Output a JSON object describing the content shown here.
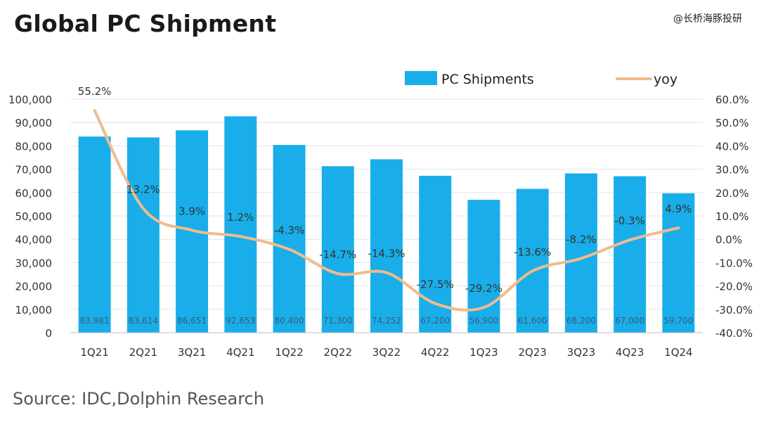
{
  "title": "Global PC Shipment",
  "watermark": "@长桥海豚投研",
  "source": "Source: IDC,Dolphin Research",
  "colors": {
    "bar": "#19aee9",
    "line": "#f2bb8c",
    "grid": "#e4e4e4"
  },
  "chart_data": {
    "type": "bar",
    "categories": [
      "1Q21",
      "2Q21",
      "3Q21",
      "4Q21",
      "1Q22",
      "2Q22",
      "3Q22",
      "4Q22",
      "1Q23",
      "2Q23",
      "3Q23",
      "4Q23",
      "1Q24"
    ],
    "series": [
      {
        "name": "PC Shipments",
        "type": "bar",
        "axis": "left",
        "values": [
          83981,
          83614,
          86651,
          92653,
          80400,
          71300,
          74252,
          67200,
          56900,
          61600,
          68200,
          67000,
          59700
        ],
        "labels": [
          "83,981",
          "83,614",
          "86,651",
          "92,653",
          "80,400",
          "71,300",
          "74,252",
          "67,200",
          "56,900",
          "61,600",
          "68,200",
          "67,000",
          "59,700"
        ]
      },
      {
        "name": "yoy",
        "type": "line",
        "axis": "right",
        "values": [
          55.2,
          13.2,
          3.9,
          1.2,
          -4.3,
          -14.7,
          -14.3,
          -27.5,
          -29.2,
          -13.6,
          -8.2,
          -0.3,
          4.9
        ],
        "labels": [
          "55.2%",
          "13.2%",
          "3.9%",
          "1.2%",
          "-4.3%",
          "-14.7%",
          "-14.3%",
          "-27.5%",
          "-29.2%",
          "-13.6%",
          "-8.2%",
          "-0.3%",
          "4.9%"
        ]
      }
    ],
    "ylim_left": [
      0,
      100000
    ],
    "yticks_left": [
      "0",
      "10,000",
      "20,000",
      "30,000",
      "40,000",
      "50,000",
      "60,000",
      "70,000",
      "80,000",
      "90,000",
      "100,000"
    ],
    "ylim_right": [
      -40,
      60
    ],
    "yticks_right": [
      "-40.0%",
      "-30.0%",
      "-20.0%",
      "-10.0%",
      "0.0%",
      "10.0%",
      "20.0%",
      "30.0%",
      "40.0%",
      "50.0%",
      "60.0%"
    ],
    "legend_position": "top"
  }
}
